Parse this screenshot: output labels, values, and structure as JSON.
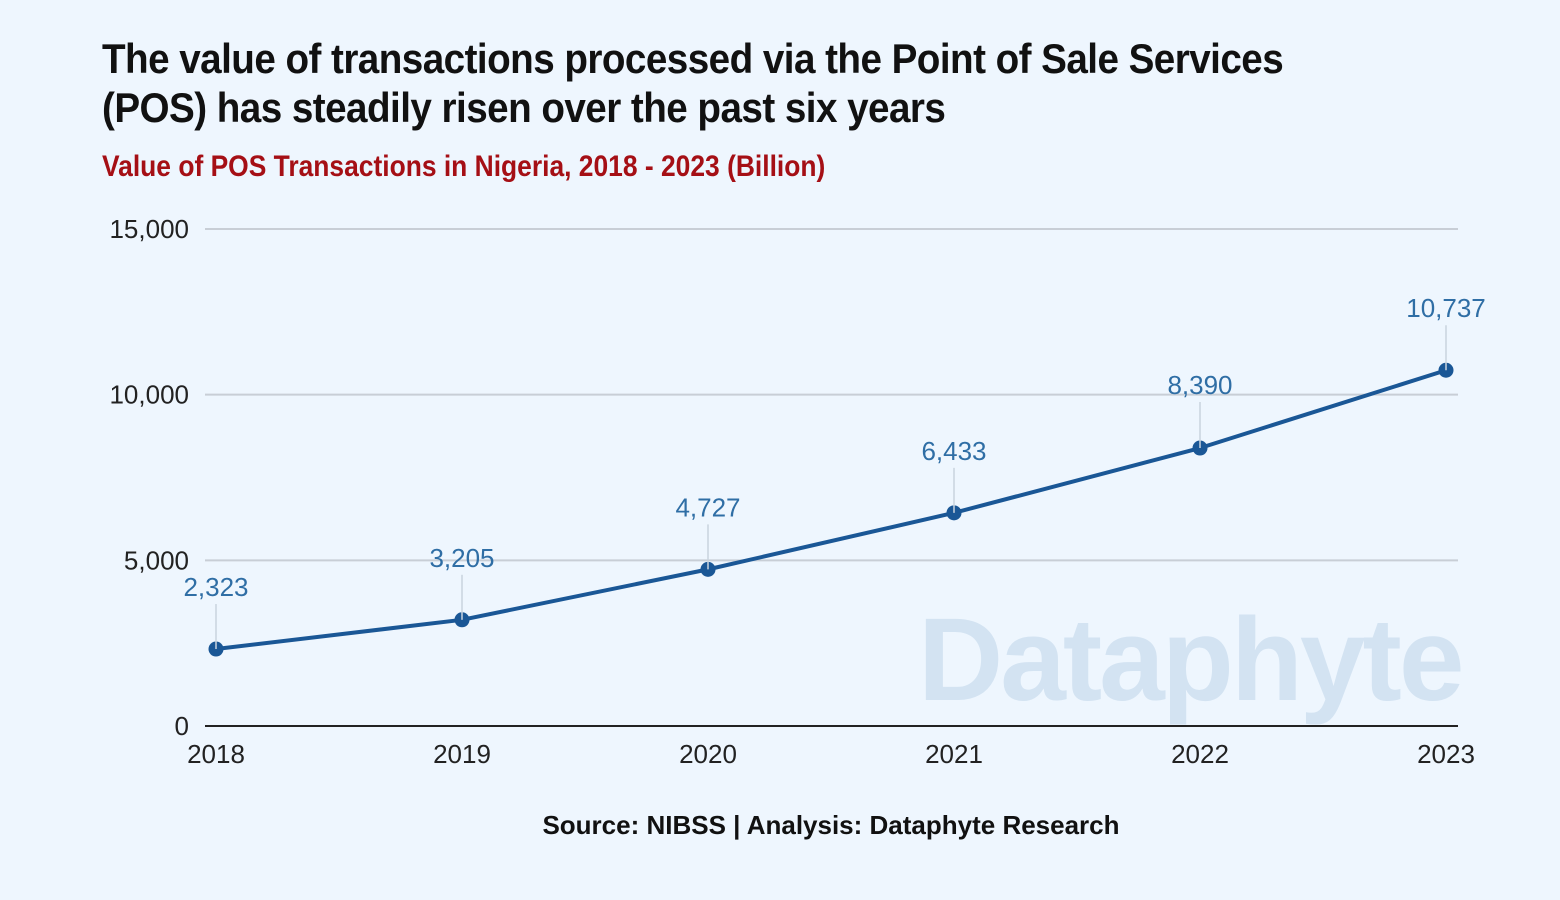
{
  "header": {
    "title": "The value of transactions processed via the Point of Sale Services (POS) has steadily risen over the past six years",
    "subtitle": "Value of POS Transactions in Nigeria, 2018 - 2023 (Billion)"
  },
  "footer": {
    "source": "Source: NIBSS | Analysis: Dataphyte Research"
  },
  "watermark": "Dataphyte",
  "colors": {
    "line": "#1a5796",
    "label": "#2f6ea5",
    "subtitle": "#a50f15",
    "grid": "#c8ced6",
    "background": "#eef6fe"
  },
  "chart_data": {
    "type": "line",
    "title": "Value of POS Transactions in Nigeria, 2018 - 2023 (Billion)",
    "xlabel": "",
    "ylabel": "",
    "categories": [
      "2018",
      "2019",
      "2020",
      "2021",
      "2022",
      "2023"
    ],
    "series": [
      {
        "name": "Value of POS Transactions (Billion)",
        "values": [
          2323,
          3205,
          4727,
          6433,
          8390,
          10737
        ],
        "value_labels": [
          "2,323",
          "3,205",
          "4,727",
          "6,433",
          "8,390",
          "10,737"
        ]
      }
    ],
    "ylim": [
      0,
      15000
    ],
    "yticks": [
      0,
      5000,
      10000,
      15000
    ],
    "ytick_labels": [
      "0",
      "5,000",
      "10,000",
      "15,000"
    ],
    "grid": true,
    "legend": "none"
  }
}
